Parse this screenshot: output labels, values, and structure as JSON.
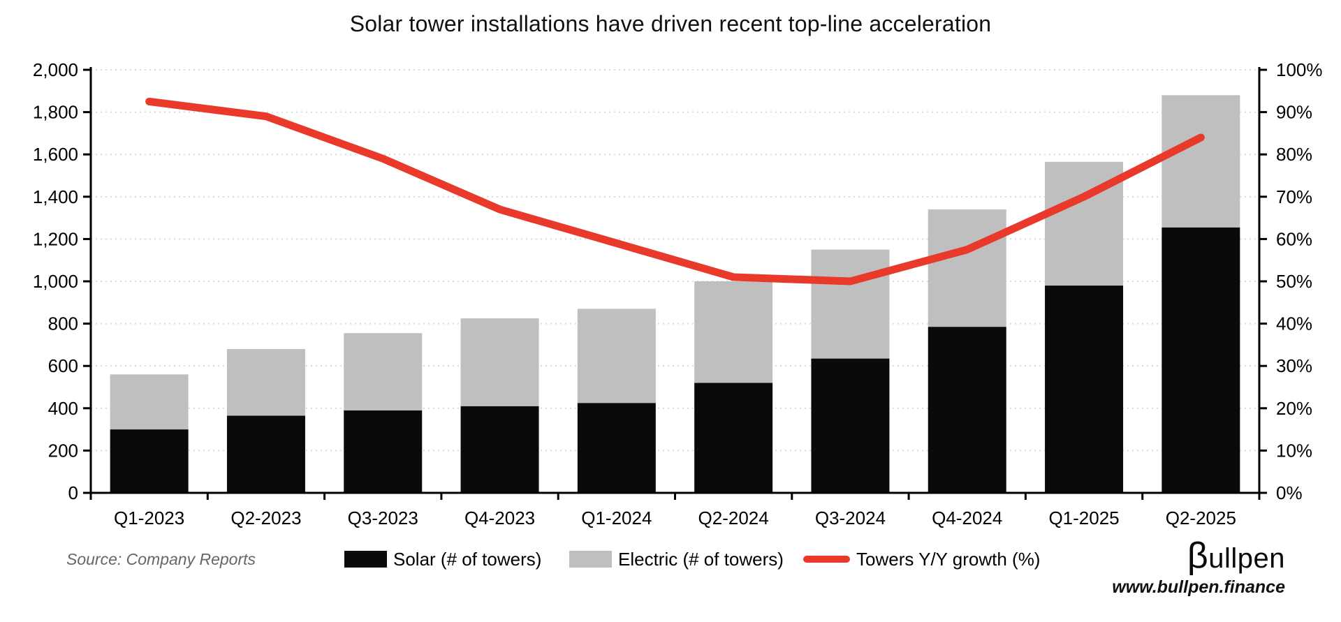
{
  "title": "Solar tower installations have driven recent top-line acceleration",
  "source_note": "Source: Company Reports",
  "branding": {
    "logo_beta": "β",
    "logo_rest": "ullpen",
    "website": "www.bullpen.finance"
  },
  "legend": [
    {
      "label": "Solar (# of towers)",
      "swatch": "black-rect"
    },
    {
      "label": "Electric (# of towers)",
      "swatch": "gray-rect"
    },
    {
      "label": "Towers Y/Y growth (%)",
      "swatch": "red-line"
    }
  ],
  "colors": {
    "solar": "#0a0a0a",
    "electric": "#bfbfbf",
    "growth_line": "#e8392a",
    "gridline": "#d9d9d9",
    "axis": "#000000",
    "source_text": "#666666"
  },
  "chart_data": {
    "type": "combo bar+line",
    "categories": [
      "Q1-2023",
      "Q2-2023",
      "Q3-2023",
      "Q4-2023",
      "Q1-2024",
      "Q2-2024",
      "Q3-2024",
      "Q4-2024",
      "Q1-2025",
      "Q2-2025"
    ],
    "series": [
      {
        "name": "Solar (# of towers)",
        "type": "bar",
        "stacked": true,
        "axis": "left",
        "values": [
          300,
          365,
          390,
          410,
          425,
          520,
          635,
          785,
          980,
          1255
        ]
      },
      {
        "name": "Electric (# of towers)",
        "type": "bar",
        "stacked": true,
        "axis": "left",
        "values": [
          260,
          315,
          365,
          415,
          445,
          480,
          515,
          555,
          585,
          625
        ]
      },
      {
        "name": "Towers Y/Y growth (%)",
        "type": "line",
        "axis": "right",
        "values": [
          92.5,
          89,
          79,
          67,
          59,
          51,
          50,
          57.5,
          70,
          84
        ]
      }
    ],
    "stacked_totals": [
      560,
      680,
      755,
      825,
      870,
      1000,
      1150,
      1340,
      1565,
      1880
    ],
    "left_axis": {
      "min": 0,
      "max": 2000,
      "tick_step": 200,
      "tick_labels": [
        "0",
        "200",
        "400",
        "600",
        "800",
        "1,000",
        "1,200",
        "1,400",
        "1,600",
        "1,800",
        "2,000"
      ]
    },
    "right_axis": {
      "min": 0,
      "max": 100,
      "tick_step": 10,
      "tick_labels": [
        "0%",
        "10%",
        "20%",
        "30%",
        "40%",
        "50%",
        "60%",
        "70%",
        "80%",
        "90%",
        "100%"
      ]
    },
    "grid": "horizontal dotted",
    "legend_position": "bottom"
  }
}
